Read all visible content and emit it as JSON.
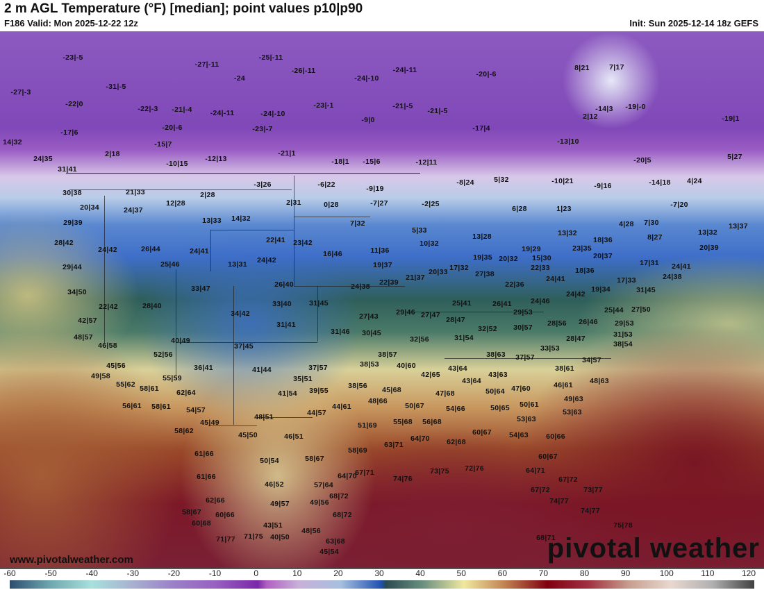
{
  "header": {
    "title": "2 m AGL Temperature (°F) [median]; point values p10|p90",
    "valid": "F186 Valid: Mon 2025-12-22 12z",
    "init": "Init: Sun 2025-12-14 18z GEFS"
  },
  "footer": {
    "website": "www.pivotalweather.com",
    "logo": "pivotal weather"
  },
  "colorbar": {
    "unit": "°F",
    "ticks": [
      "-60",
      "-50",
      "-40",
      "-30",
      "-20",
      "-10",
      "0",
      "10",
      "20",
      "30",
      "40",
      "50",
      "60",
      "70",
      "80",
      "90",
      "100",
      "110",
      "120"
    ]
  },
  "point_values": [
    "-23|-5",
    "-27|-11",
    "-25|-11",
    "-26|-11",
    "-24|-10",
    "-24|-11",
    "-20|-6",
    "8|21",
    "7|17",
    "-24",
    "-27|-3",
    "-31|-5",
    "-22|0",
    "-22|-3",
    "-21|-4",
    "-24|-11",
    "-24|-10",
    "-23|-1",
    "-9|0",
    "-21|-5",
    "-21|-5",
    "-14|3",
    "-19|-0",
    "-20|-6",
    "-23|-7",
    "-17|6",
    "-17|4",
    "2|12",
    "-19|1",
    "14|32",
    "-15|7",
    "-21|1",
    "2|18",
    "-13|10",
    "24|35",
    "-10|15",
    "-12|13",
    "-18|1",
    "-15|6",
    "-12|11",
    "-20|5",
    "5|27",
    "31|41",
    "30|38",
    "21|33",
    "12|28",
    "2|28",
    "-3|26",
    "-6|22",
    "-9|19",
    "-8|24",
    "5|32",
    "-10|21",
    "-9|16",
    "-14|18",
    "4|24",
    "20|34",
    "24|37",
    "2|31",
    "0|28",
    "-7|27",
    "-2|25",
    "6|28",
    "1|23",
    "-7|20",
    "29|39",
    "13|33",
    "14|32",
    "7|32",
    "4|28",
    "7|30",
    "13|37",
    "5|33",
    "13|28",
    "13|32",
    "13|32",
    "28|42",
    "22|41",
    "23|42",
    "18|36",
    "8|27",
    "10|32",
    "11|36",
    "24|42",
    "26|44",
    "24|41",
    "16|46",
    "19|29",
    "23|35",
    "20|39",
    "19|35",
    "20|32",
    "15|30",
    "20|37",
    "13|31",
    "24|42",
    "25|46",
    "19|37",
    "29|44",
    "22|33",
    "17|31",
    "24|41",
    "18|36",
    "17|32",
    "20|33",
    "27|38",
    "21|37",
    "24|38",
    "22|39",
    "24|41",
    "24|38",
    "33|47",
    "26|40",
    "22|36",
    "19|34",
    "17|33",
    "34|50",
    "24|42",
    "31|45",
    "33|40",
    "31|45",
    "22|42",
    "28|40",
    "25|41",
    "26|41",
    "24|46",
    "34|42",
    "29|46",
    "27|47",
    "25|44",
    "27|50",
    "29|53",
    "27|43",
    "28|47",
    "42|57",
    "31|41",
    "28|56",
    "26|46",
    "29|53",
    "31|46",
    "30|45",
    "48|57",
    "30|57",
    "32|52",
    "28|47",
    "31|53",
    "40|49",
    "32|56",
    "31|54",
    "46|58",
    "37|45",
    "38|54",
    "33|53",
    "38|57",
    "52|56",
    "38|63",
    "37|57",
    "45|56",
    "36|41",
    "37|57",
    "38|53",
    "40|60",
    "34|57",
    "38|61",
    "41|44",
    "49|58",
    "42|65",
    "43|64",
    "55|59",
    "35|51",
    "43|63",
    "46|61",
    "48|63",
    "55|62",
    "58|61",
    "38|56",
    "43|64",
    "39|55",
    "62|64",
    "41|54",
    "45|68",
    "50|64",
    "47|60",
    "47|68",
    "49|63",
    "56|61",
    "58|61",
    "48|66",
    "44|61",
    "50|67",
    "50|61",
    "54|66",
    "50|65",
    "53|63",
    "54|57",
    "44|57",
    "48|51",
    "45|49",
    "55|68",
    "56|68",
    "51|69",
    "53|63",
    "58|62",
    "45|50",
    "46|51",
    "60|67",
    "54|63",
    "60|66",
    "63|71",
    "64|70",
    "62|68",
    "58|69",
    "61|66",
    "50|54",
    "58|67",
    "60|67",
    "64|70",
    "67|71",
    "74|76",
    "73|75",
    "72|76",
    "64|71",
    "61|66",
    "46|52",
    "57|64",
    "67|72",
    "62|66",
    "67|72",
    "73|77",
    "68|72",
    "49|57",
    "49|56",
    "74|77",
    "58|67",
    "60|66",
    "68|72",
    "74|77",
    "43|51",
    "60|68",
    "75|78",
    "48|56",
    "71|77",
    "71|75",
    "40|50",
    "68|71",
    "63|68",
    "45|54"
  ]
}
